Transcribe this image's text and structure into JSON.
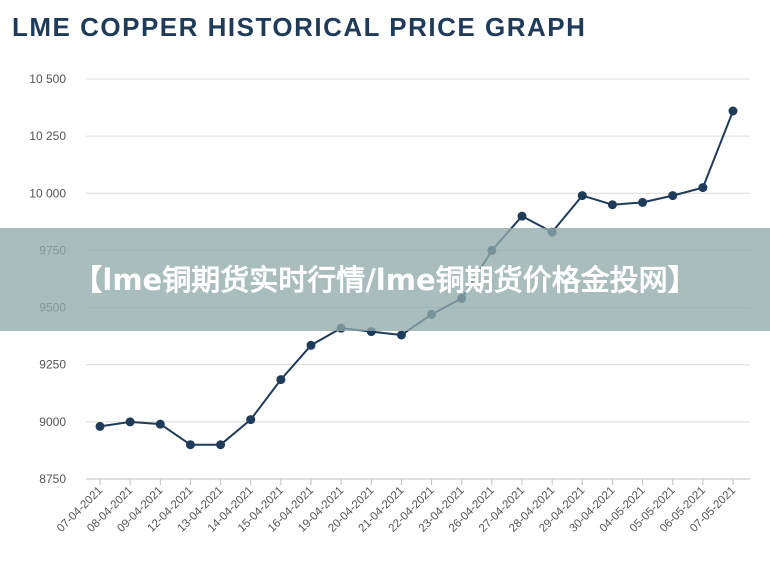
{
  "chart_data": {
    "type": "line",
    "title": "LME COPPER HISTORICAL PRICE GRAPH",
    "xlabel": "",
    "ylabel": "",
    "categories": [
      "07-04-2021",
      "08-04-2021",
      "09-04-2021",
      "12-04-2021",
      "13-04-2021",
      "14-04-2021",
      "15-04-2021",
      "16-04-2021",
      "19-04-2021",
      "20-04-2021",
      "21-04-2021",
      "22-04-2021",
      "23-04-2021",
      "26-04-2021",
      "27-04-2021",
      "28-04-2021",
      "29-04-2021",
      "30-04-2021",
      "04-05-2021",
      "05-05-2021",
      "06-05-2021",
      "07-05-2021"
    ],
    "series": [
      {
        "values": [
          8980,
          9000,
          8990,
          8900,
          8900,
          9010,
          9185,
          9335,
          9410,
          9395,
          9380,
          9470,
          9540,
          9750,
          9900,
          9830,
          9990,
          9950,
          9960,
          9990,
          10025,
          10360
        ]
      }
    ],
    "ylim": [
      8750,
      10500
    ],
    "yticks": [
      8750,
      9000,
      9250,
      9500,
      9750,
      10000,
      10250,
      10500
    ],
    "ytick_labels": [
      "8750",
      "9000",
      "9250",
      "9500",
      "9750",
      "10 000",
      "10 250",
      "10 500"
    ],
    "grid": true,
    "line_color": "#1f3b5a"
  },
  "overlay": {
    "text": "【lme铜期货实时行情/lme铜期货价格金投网】"
  }
}
